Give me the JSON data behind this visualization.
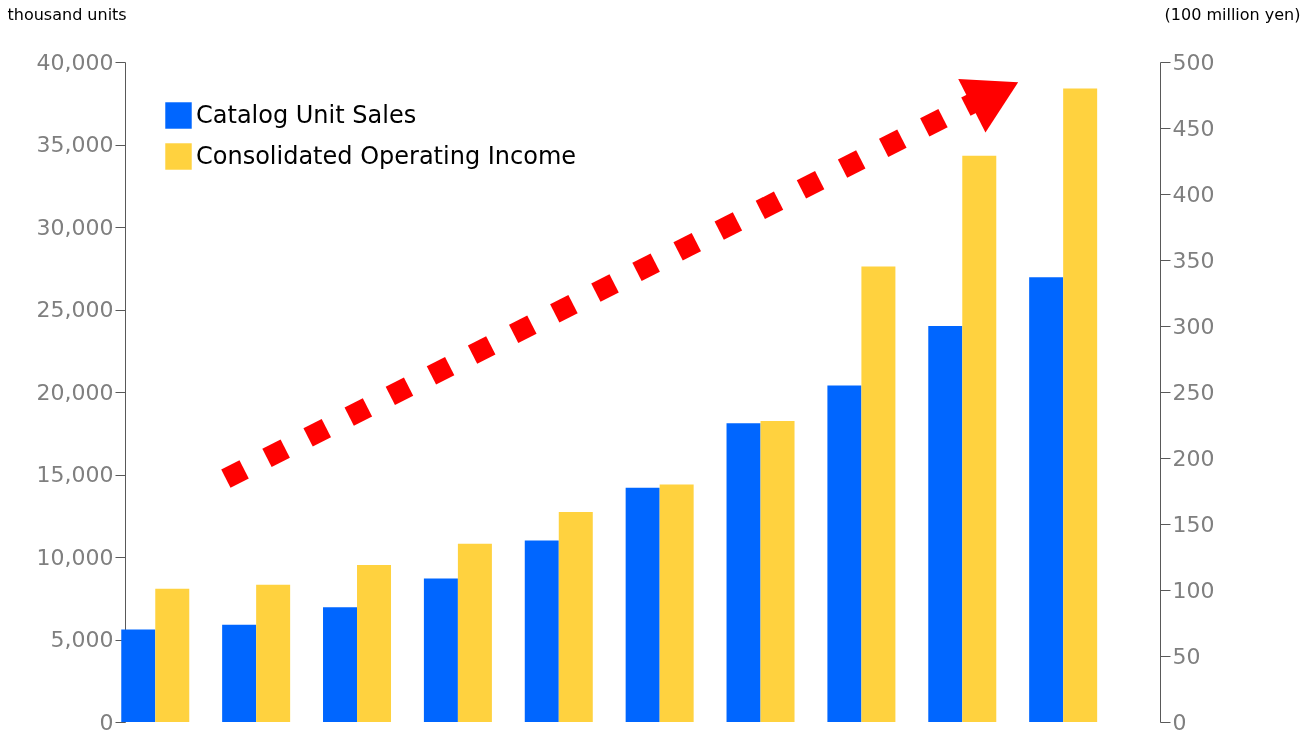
{
  "chart_data": {
    "type": "bar",
    "ylabel": "thousand units",
    "y2label": "(100 million yen)",
    "categories": [
      null,
      null,
      null,
      null,
      null,
      null,
      null,
      null,
      null,
      null
    ],
    "series": [
      {
        "name": "Catalog Unit Sales",
        "color": "#0066ff",
        "values": [
          5600,
          5900,
          6950,
          8700,
          11000,
          14200,
          18100,
          20400,
          24000,
          26950
        ]
      },
      {
        "name": "Consolidated Operating Income",
        "color": "#ffd23f",
        "axis": "y2",
        "values": [
          101,
          104,
          119,
          135,
          159,
          180,
          228,
          345,
          429,
          480
        ]
      }
    ],
    "ylim": [
      0,
      40000
    ],
    "yticks": [
      0,
      {
        "value": 5000,
        "label": "5,000"
      },
      {
        "value": 10000,
        "label": "10,000"
      },
      {
        "value": 15000,
        "label": "15,000"
      },
      {
        "value": 20000,
        "label": "20,000"
      },
      {
        "value": 25000,
        "label": "25,000"
      },
      {
        "value": 30000,
        "label": "30,000"
      },
      {
        "value": 35000,
        "label": "35,000"
      },
      {
        "value": 40000,
        "label": "40,000"
      }
    ],
    "y2lim": [
      0,
      500
    ],
    "y2ticks": [
      0,
      50,
      100,
      150,
      200,
      250,
      300,
      350,
      400,
      450,
      500
    ],
    "grid": false,
    "legend": "top left"
  }
}
